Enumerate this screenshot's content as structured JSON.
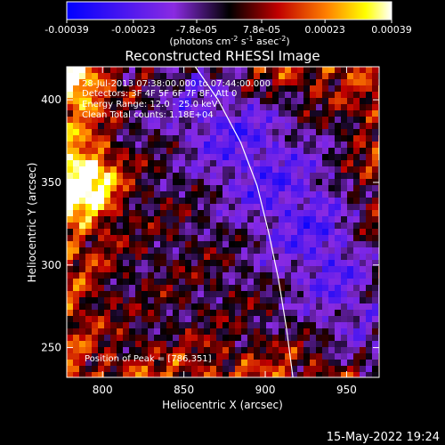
{
  "colorbar": {
    "ticks": [
      "-0.00039",
      "-0.00023",
      "-7.8e-05",
      "7.8e-05",
      "0.00023",
      "0.00039"
    ],
    "range": [
      -0.00039,
      0.00039
    ],
    "units_main": "(photons cm",
    "units_exp1": "-2",
    "units_mid": " s",
    "units_exp2": "-1",
    "units_tail": " asec",
    "units_exp3": "-2",
    "units_close": ")"
  },
  "chart_data": {
    "type": "heatmap",
    "title": "Reconstructed RHESSI Image",
    "xlabel": "Heliocentric X (arcsec)",
    "ylabel": "Heliocentric Y (arcsec)",
    "xlim": [
      778,
      970
    ],
    "ylim": [
      232,
      420
    ],
    "xticks": [
      "800",
      "850",
      "900",
      "950"
    ],
    "yticks": [
      "250",
      "300",
      "350",
      "400"
    ],
    "xtick_values": [
      800,
      850,
      900,
      950
    ],
    "ytick_values": [
      250,
      300,
      350,
      400
    ],
    "colormap": "blue-purple-black-red-yellow-white",
    "limb": [
      [
        857,
        420
      ],
      [
        871,
        400
      ],
      [
        885,
        374
      ],
      [
        895,
        348
      ],
      [
        902,
        320
      ],
      [
        908,
        292
      ],
      [
        913,
        262
      ],
      [
        917,
        232
      ]
    ],
    "annotations": {
      "line1": "28-Jul-2013 07:38:00.000 to 07:44:00.000",
      "line2": "Detectors: 3F 4F 5F 6F 7F 8F, Att 0",
      "line3": "Energy Range: 12.0 - 25.0 keV",
      "line4": "Clean     Total counts: 1.18E+04",
      "peak": "Position of Peak = [786,351]"
    }
  },
  "footer": {
    "timestamp": "15-May-2022 19:24"
  }
}
